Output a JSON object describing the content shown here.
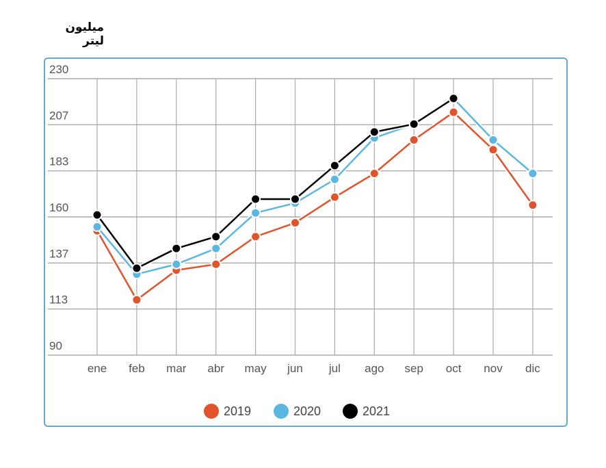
{
  "chart_data": {
    "type": "line",
    "title": "میلیون لیتر",
    "xlabel": "",
    "ylabel": "میلیون لیتر",
    "categories": [
      "ene",
      "feb",
      "mar",
      "abr",
      "may",
      "jun",
      "jul",
      "ago",
      "sep",
      "oct",
      "nov",
      "dic"
    ],
    "yticks": [
      "230",
      "207",
      "183",
      "160",
      "137",
      "113",
      "90"
    ],
    "ylim": [
      90,
      230
    ],
    "grid": true,
    "legend_position": "bottom-center",
    "series": [
      {
        "name": "2019",
        "color": "#e0532b",
        "values": [
          153,
          118,
          133,
          136,
          150,
          157,
          170,
          182,
          199,
          213,
          194,
          166
        ]
      },
      {
        "name": "2020",
        "color": "#5cb6e2",
        "values": [
          155,
          131,
          136,
          144,
          162,
          167,
          179,
          200,
          207,
          220,
          199,
          182
        ]
      },
      {
        "name": "2021",
        "color": "#000000",
        "values": [
          161,
          134,
          144,
          150,
          169,
          169,
          186,
          203,
          207,
          220,
          null,
          null
        ]
      }
    ]
  }
}
